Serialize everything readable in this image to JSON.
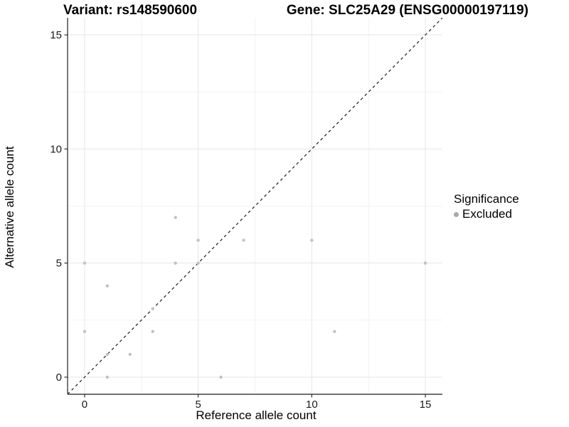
{
  "chart_data": {
    "type": "scatter",
    "title_left": "Variant: rs148590600",
    "title_right": "Gene: SLC25A29 (ENSG00000197119)",
    "xlabel": "Reference allele count",
    "ylabel": "Alternative allele count",
    "xlim": [
      -0.75,
      15.75
    ],
    "ylim": [
      -0.75,
      15.75
    ],
    "x_ticks": [
      0,
      5,
      10,
      15
    ],
    "y_ticks": [
      0,
      5,
      10,
      15
    ],
    "x_minor_ticks": [
      2.5,
      7.5,
      12.5
    ],
    "y_minor_ticks": [
      2.5,
      7.5,
      12.5
    ],
    "grid": true,
    "identity_line": {
      "style": "dashed",
      "equation": "y = x",
      "color": "#1a1a1a"
    },
    "series": [
      {
        "name": "Excluded",
        "marker": "circle",
        "color": "#c2c2c2",
        "points": [
          [
            0,
            2
          ],
          [
            0,
            5
          ],
          [
            1,
            0
          ],
          [
            1,
            1
          ],
          [
            1,
            4
          ],
          [
            2,
            1
          ],
          [
            3,
            2
          ],
          [
            3,
            3
          ],
          [
            4,
            5
          ],
          [
            4,
            7
          ],
          [
            5,
            5
          ],
          [
            5,
            6
          ],
          [
            6,
            0
          ],
          [
            7,
            6
          ],
          [
            10,
            6
          ],
          [
            11,
            2
          ],
          [
            15,
            5
          ]
        ]
      }
    ],
    "legend": {
      "title": "Significance",
      "position": "right",
      "items": [
        {
          "label": "Excluded",
          "marker": "circle",
          "color": "#a8a8a8"
        }
      ]
    }
  },
  "colors": {
    "background": "#ffffff",
    "axis_line": "#404040",
    "tick_mark": "#333333",
    "tick_label": "#1a1a1a",
    "grid_major": "#e6e6e6",
    "grid_minor": "#f2f2f2"
  }
}
